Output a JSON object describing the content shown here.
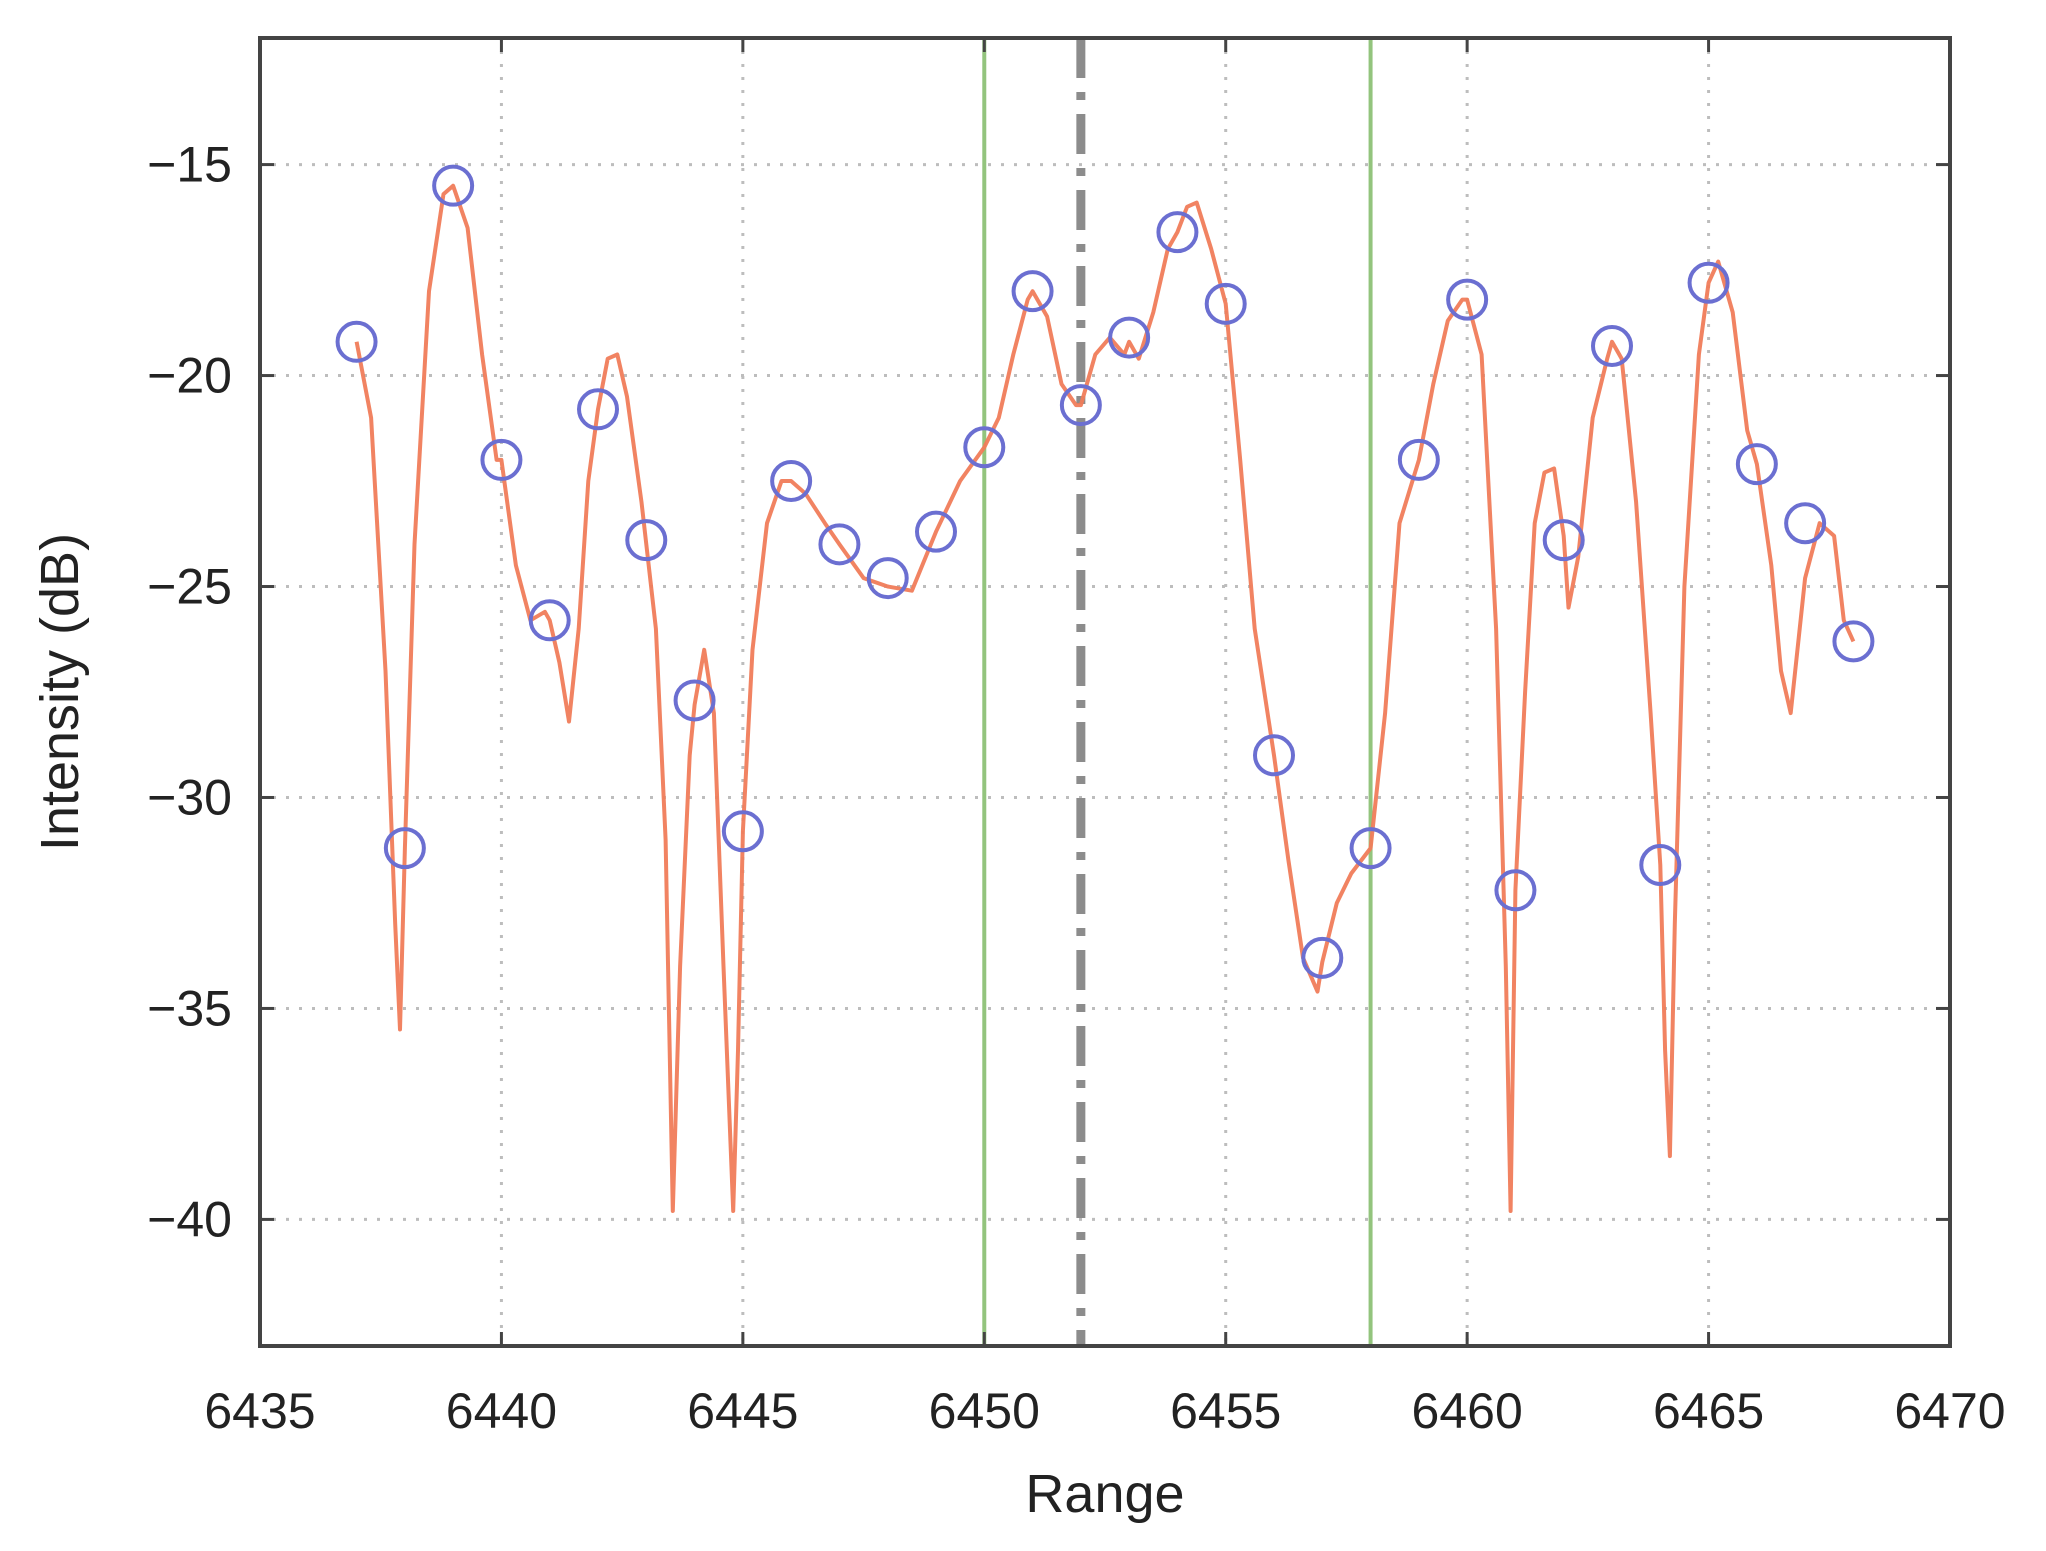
{
  "chart_data": {
    "type": "line",
    "title": "",
    "xlabel": "Range",
    "ylabel": "Intensity (dB)",
    "xlim": [
      6435,
      6470
    ],
    "ylim": [
      -43,
      -12
    ],
    "x_ticks": [
      6435,
      6440,
      6445,
      6450,
      6455,
      6460,
      6465,
      6470
    ],
    "y_ticks": [
      -40,
      -35,
      -30,
      -25,
      -20,
      -15
    ],
    "x_tick_labels": [
      "6435",
      "6440",
      "6445",
      "6450",
      "6455",
      "6460",
      "6465",
      "6470"
    ],
    "y_tick_labels": [
      "−40",
      "−35",
      "−30",
      "−25",
      "−20",
      "−15"
    ],
    "grid": true,
    "series": [
      {
        "style": "line",
        "color": "#f07c5a",
        "x": [
          6437,
          6437.3,
          6437.6,
          6437.8,
          6437.9,
          6438,
          6438.2,
          6438.5,
          6438.8,
          6439,
          6439.3,
          6439.6,
          6439.9,
          6440,
          6440.3,
          6440.6,
          6440.9,
          6441,
          6441.2,
          6441.4,
          6441.6,
          6441.8,
          6442,
          6442.2,
          6442.4,
          6442.6,
          6442.9,
          6443,
          6443.2,
          6443.4,
          6443.55,
          6443.7,
          6443.9,
          6444,
          6444.2,
          6444.4,
          6444.6,
          6444.8,
          6444.9,
          6445,
          6445.2,
          6445.5,
          6445.8,
          6446,
          6446.3,
          6446.7,
          6447,
          6447.5,
          6448,
          6448.5,
          6449,
          6449.5,
          6450,
          6450.3,
          6450.6,
          6450.9,
          6451,
          6451.3,
          6451.6,
          6451.9,
          6452,
          6452.3,
          6452.6,
          6452.9,
          6453,
          6453.2,
          6453.5,
          6453.8,
          6454,
          6454.2,
          6454.4,
          6454.7,
          6455,
          6455.3,
          6455.6,
          6456,
          6456.3,
          6456.6,
          6456.9,
          6457,
          6457.3,
          6457.6,
          6458,
          6458.3,
          6458.6,
          6459,
          6459.3,
          6459.6,
          6459.9,
          6460,
          6460.3,
          6460.6,
          6460.8,
          6460.9,
          6461,
          6461.2,
          6461.4,
          6461.6,
          6461.8,
          6462,
          6462.1,
          6462.3,
          6462.6,
          6462.9,
          6463,
          6463.2,
          6463.5,
          6463.8,
          6464,
          6464.1,
          6464.2,
          6464.3,
          6464.5,
          6464.8,
          6465,
          6465.2,
          6465.5,
          6465.8,
          6466,
          6466.3,
          6466.5,
          6466.7,
          6467,
          6467.3,
          6467.6,
          6467.8,
          6468
        ],
        "y": [
          -19.2,
          -21,
          -27,
          -33,
          -35.5,
          -31.2,
          -24,
          -18,
          -15.7,
          -15.5,
          -16.5,
          -19.5,
          -22,
          -22,
          -24.5,
          -25.8,
          -25.6,
          -25.8,
          -26.8,
          -28.2,
          -26,
          -22.5,
          -20.8,
          -19.6,
          -19.5,
          -20.5,
          -23,
          -24,
          -26,
          -31,
          -39.8,
          -34,
          -29,
          -27.8,
          -26.5,
          -28,
          -34,
          -39.8,
          -36,
          -30.8,
          -26.5,
          -23.5,
          -22.5,
          -22.5,
          -22.8,
          -23.5,
          -24,
          -24.8,
          -25,
          -25.1,
          -23.7,
          -22.5,
          -21.7,
          -21,
          -19.5,
          -18.2,
          -18,
          -18.6,
          -20.2,
          -20.7,
          -20.7,
          -19.5,
          -19.1,
          -19.5,
          -19.2,
          -19.6,
          -18.5,
          -17,
          -16.6,
          -16,
          -15.9,
          -17,
          -18.3,
          -22,
          -26,
          -29,
          -31.5,
          -33.8,
          -34.6,
          -33.9,
          -32.5,
          -31.8,
          -31.2,
          -28,
          -23.5,
          -22,
          -20.2,
          -18.7,
          -18.2,
          -18.2,
          -19.5,
          -26,
          -34,
          -39.8,
          -32.2,
          -27.5,
          -23.5,
          -22.3,
          -22.2,
          -23.8,
          -25.5,
          -24.3,
          -21,
          -19.6,
          -19.2,
          -19.6,
          -23,
          -28,
          -31.6,
          -36,
          -38.5,
          -33,
          -25,
          -19.5,
          -17.8,
          -17.3,
          -18.5,
          -21.3,
          -22.1,
          -24.5,
          -27,
          -28,
          -24.8,
          -23.5,
          -23.8,
          -25.8,
          -26.3
        ],
        "marker": "none"
      },
      {
        "style": "markers",
        "marker": "circle",
        "color": "#6b6fd1",
        "x": [
          6437,
          6438,
          6439,
          6440,
          6441,
          6442,
          6443,
          6444,
          6445,
          6446,
          6447,
          6448,
          6449,
          6450,
          6451,
          6452,
          6453,
          6454,
          6455,
          6456,
          6457,
          6458,
          6459,
          6460,
          6461,
          6462,
          6463,
          6464,
          6465,
          6466,
          6467,
          6468
        ],
        "y": [
          -19.2,
          -31.2,
          -15.5,
          -22.0,
          -25.8,
          -20.8,
          -23.9,
          -27.7,
          -30.8,
          -22.5,
          -24.0,
          -24.8,
          -23.7,
          -21.7,
          -18.0,
          -20.7,
          -19.1,
          -16.6,
          -18.3,
          -29.0,
          -33.8,
          -31.2,
          -22.0,
          -18.2,
          -32.2,
          -23.9,
          -19.3,
          -31.6,
          -17.8,
          -22.1,
          -23.5,
          -26.3
        ]
      }
    ],
    "vertical_lines": [
      {
        "x": 6450,
        "color": "#93c47d",
        "style": "solid"
      },
      {
        "x": 6452,
        "color": "#8c8c8c",
        "style": "dashed"
      },
      {
        "x": 6458,
        "color": "#93c47d",
        "style": "solid"
      }
    ]
  }
}
